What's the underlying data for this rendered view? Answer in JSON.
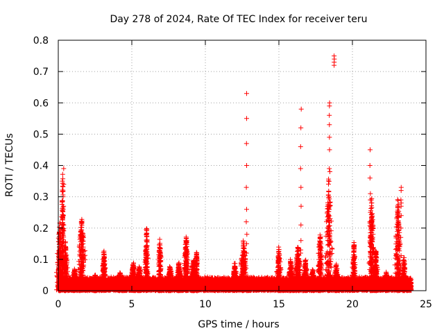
{
  "chart_data": {
    "type": "scatter",
    "title": "Day 278 of 2024, Rate Of TEC Index for receiver teru",
    "xlabel": "GPS time / hours",
    "ylabel": "ROTI / TECUs",
    "xlim": [
      0,
      25
    ],
    "ylim": [
      0,
      0.8
    ],
    "xticks": [
      0,
      5,
      10,
      15,
      20,
      25
    ],
    "yticks": [
      0,
      0.1,
      0.2,
      0.3,
      0.4,
      0.5,
      0.6,
      0.7,
      0.8
    ],
    "xtick_labels": [
      "0",
      "5",
      "10",
      "15",
      "20",
      "25"
    ],
    "ytick_labels": [
      "0",
      "0.1",
      "0.2",
      "0.3",
      "0.4",
      "0.5",
      "0.6",
      "0.7",
      "0.8"
    ],
    "grid": true,
    "marker": "+",
    "marker_color": "#ff0000",
    "baseline": {
      "x_start": 0,
      "x_end": 24,
      "step": 0.008,
      "typical_max": 0.04,
      "note_level": 0.015
    },
    "bursts": [
      {
        "x": 0.1,
        "width": 0.25,
        "peak": 0.22
      },
      {
        "x": 0.3,
        "width": 0.12,
        "peak": 0.38
      },
      {
        "x": 0.5,
        "width": 0.15,
        "peak": 0.16
      },
      {
        "x": 1.1,
        "width": 0.2,
        "peak": 0.07
      },
      {
        "x": 1.6,
        "width": 0.3,
        "peak": 0.24
      },
      {
        "x": 2.5,
        "width": 0.2,
        "peak": 0.05
      },
      {
        "x": 3.1,
        "width": 0.15,
        "peak": 0.13
      },
      {
        "x": 4.2,
        "width": 0.2,
        "peak": 0.06
      },
      {
        "x": 5.1,
        "width": 0.2,
        "peak": 0.09
      },
      {
        "x": 5.5,
        "width": 0.3,
        "peak": 0.08
      },
      {
        "x": 6.0,
        "width": 0.15,
        "peak": 0.2
      },
      {
        "x": 6.9,
        "width": 0.15,
        "peak": 0.17
      },
      {
        "x": 7.6,
        "width": 0.2,
        "peak": 0.08
      },
      {
        "x": 8.2,
        "width": 0.2,
        "peak": 0.09
      },
      {
        "x": 8.7,
        "width": 0.2,
        "peak": 0.19
      },
      {
        "x": 9.2,
        "width": 0.3,
        "peak": 0.1
      },
      {
        "x": 9.4,
        "width": 0.1,
        "peak": 0.13
      },
      {
        "x": 12.0,
        "width": 0.2,
        "peak": 0.09
      },
      {
        "x": 12.6,
        "width": 0.25,
        "peak": 0.16
      },
      {
        "x": 15.0,
        "width": 0.2,
        "peak": 0.14
      },
      {
        "x": 15.8,
        "width": 0.2,
        "peak": 0.1
      },
      {
        "x": 16.3,
        "width": 0.25,
        "peak": 0.14
      },
      {
        "x": 16.8,
        "width": 0.2,
        "peak": 0.1
      },
      {
        "x": 17.3,
        "width": 0.2,
        "peak": 0.07
      },
      {
        "x": 17.8,
        "width": 0.2,
        "peak": 0.19
      },
      {
        "x": 18.4,
        "width": 0.3,
        "peak": 0.36
      },
      {
        "x": 18.9,
        "width": 0.2,
        "peak": 0.09
      },
      {
        "x": 20.1,
        "width": 0.15,
        "peak": 0.16
      },
      {
        "x": 21.3,
        "width": 0.25,
        "peak": 0.3
      },
      {
        "x": 21.6,
        "width": 0.15,
        "peak": 0.14
      },
      {
        "x": 22.3,
        "width": 0.15,
        "peak": 0.06
      },
      {
        "x": 23.1,
        "width": 0.25,
        "peak": 0.3
      },
      {
        "x": 23.5,
        "width": 0.15,
        "peak": 0.11
      }
    ],
    "spikes": [
      {
        "x": 0.35,
        "values": [
          0.39,
          0.34,
          0.3,
          0.27,
          0.24,
          0.21
        ]
      },
      {
        "x": 12.8,
        "values": [
          0.63,
          0.55,
          0.47,
          0.4,
          0.33,
          0.26,
          0.22,
          0.18,
          0.15,
          0.12
        ]
      },
      {
        "x": 16.5,
        "values": [
          0.58,
          0.52,
          0.46,
          0.39,
          0.33,
          0.27,
          0.21,
          0.16,
          0.13,
          0.12
        ]
      },
      {
        "x": 18.45,
        "values": [
          0.6,
          0.59,
          0.56,
          0.53,
          0.49,
          0.45,
          0.39,
          0.38
        ]
      },
      {
        "x": 18.75,
        "values": [
          0.75,
          0.74,
          0.73,
          0.72
        ]
      },
      {
        "x": 21.2,
        "values": [
          0.45,
          0.4,
          0.36,
          0.31,
          0.29,
          0.25,
          0.22
        ]
      },
      {
        "x": 23.3,
        "values": [
          0.33,
          0.32,
          0.29,
          0.28,
          0.27,
          0.24,
          0.2,
          0.17
        ]
      }
    ]
  }
}
